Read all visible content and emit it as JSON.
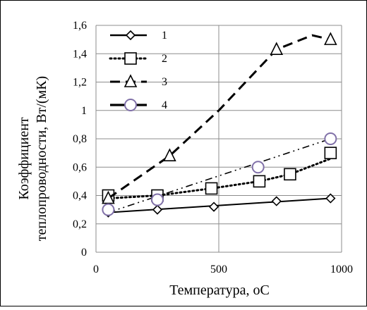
{
  "chart_data": {
    "type": "line",
    "title": "",
    "xlabel": "Температура, оС",
    "ylabel_lines": [
      "Коэффициент",
      "теплопроводности, Вт/(мК)"
    ],
    "xlim": [
      0,
      1000
    ],
    "ylim": [
      0,
      1.6
    ],
    "x_ticks": [
      "0",
      "500",
      "1000"
    ],
    "y_ticks": [
      "0",
      "0,2",
      "0,4",
      "0,6",
      "0,8",
      "1",
      "1,2",
      "1,4",
      "1,6"
    ],
    "grid": true,
    "legend_placement": "top-left",
    "series": [
      {
        "name": "1",
        "marker": "diamond",
        "points": [
          [
            50,
            0.28
          ],
          [
            250,
            0.3
          ],
          [
            480,
            0.32
          ],
          [
            735,
            0.36
          ],
          [
            955,
            0.38
          ]
        ],
        "line_style": "solid",
        "line_points": [
          [
            50,
            0.28
          ],
          [
            955,
            0.38
          ]
        ]
      },
      {
        "name": "2",
        "marker": "square",
        "points": [
          [
            50,
            0.4
          ],
          [
            250,
            0.4
          ],
          [
            470,
            0.45
          ],
          [
            665,
            0.5
          ],
          [
            790,
            0.55
          ],
          [
            955,
            0.7
          ]
        ],
        "line_style": "dotted",
        "line_points": [
          [
            50,
            0.38
          ],
          [
            250,
            0.4
          ],
          [
            470,
            0.45
          ],
          [
            665,
            0.5
          ],
          [
            790,
            0.55
          ],
          [
            955,
            0.66
          ]
        ]
      },
      {
        "name": "3",
        "marker": "triangle",
        "points": [
          [
            50,
            0.38
          ],
          [
            300,
            0.68
          ],
          [
            735,
            1.43
          ],
          [
            955,
            1.5
          ]
        ],
        "line_style": "dashed",
        "line_points": [
          [
            50,
            0.38
          ],
          [
            300,
            0.68
          ],
          [
            500,
            1.0
          ],
          [
            735,
            1.43
          ],
          [
            880,
            1.53
          ],
          [
            955,
            1.5
          ]
        ]
      },
      {
        "name": "4",
        "marker": "circle",
        "points": [
          [
            50,
            0.3
          ],
          [
            250,
            0.37
          ],
          [
            660,
            0.6
          ],
          [
            955,
            0.8
          ]
        ],
        "line_style": "dashdotdot",
        "line_points": [
          [
            50,
            0.28
          ],
          [
            955,
            0.8
          ]
        ]
      }
    ]
  }
}
